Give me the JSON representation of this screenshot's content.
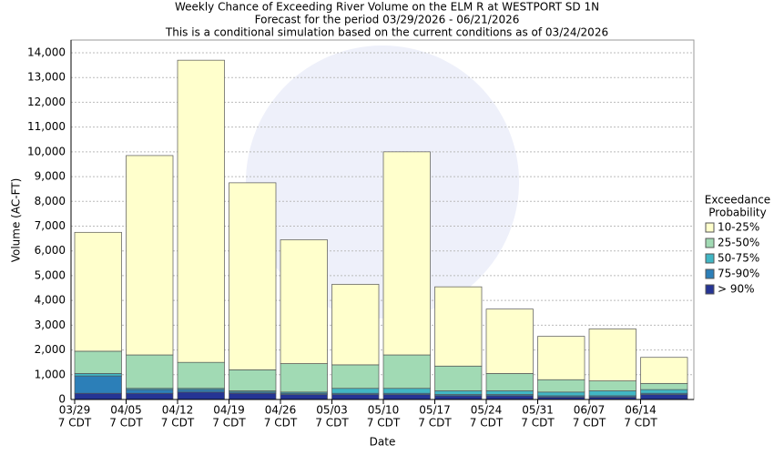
{
  "chart_data": {
    "type": "stacked_bar",
    "title": "Weekly Chance of Exceeding River Volume on the ELM R at WESTPORT SD 1N",
    "subtitle": "Forecast for the period 03/29/2026 - 06/21/2026",
    "note": "This is a conditional simulation based on the current conditions as of 03/24/2026",
    "x_label": "Date",
    "y_label": "Volume (AC-FT)",
    "categories": [
      "03/29",
      "04/05",
      "04/12",
      "04/19",
      "04/26",
      "05/03",
      "05/10",
      "05/17",
      "05/24",
      "05/31",
      "06/07",
      "06/14"
    ],
    "tick_time": "7 CDT",
    "legend_title": [
      "Exceedance",
      "Probability"
    ],
    "ylim": [
      0,
      14000
    ],
    "yticks": [
      0,
      {
        "value": 1000,
        "label": "1,000"
      },
      {
        "value": 2000,
        "label": "2,000"
      },
      {
        "value": 3000,
        "label": "3,000"
      },
      {
        "value": 4000,
        "label": "4,000"
      },
      {
        "value": 5000,
        "label": "5,000"
      },
      {
        "value": 6000,
        "label": "6,000"
      },
      {
        "value": 7000,
        "label": "7,000"
      },
      {
        "value": 8000,
        "label": "8,000"
      },
      {
        "value": 9000,
        "label": "9,000"
      },
      {
        "value": 10000,
        "label": "10,000"
      },
      {
        "value": 11000,
        "label": "11,000"
      },
      {
        "value": 12000,
        "label": "12,000"
      },
      {
        "value": 13000,
        "label": "13,000"
      },
      {
        "value": 14000,
        "label": "14,000"
      }
    ],
    "grid": true,
    "series": [
      {
        "name": "> 90%",
        "color": "#253494",
        "values": [
          250,
          250,
          300,
          250,
          200,
          200,
          200,
          150,
          150,
          100,
          100,
          200
        ]
      },
      {
        "name": "75-90%",
        "color": "#2c7fb8",
        "values": [
          700,
          150,
          100,
          50,
          50,
          50,
          50,
          50,
          50,
          50,
          50,
          50
        ]
      },
      {
        "name": "50-75%",
        "color": "#41b6c4",
        "values": [
          100,
          50,
          50,
          50,
          50,
          200,
          200,
          150,
          150,
          150,
          200,
          150
        ]
      },
      {
        "name": "25-50%",
        "color": "#a1dab4",
        "values": [
          900,
          1350,
          1050,
          850,
          1150,
          950,
          1350,
          1000,
          700,
          500,
          400,
          250
        ]
      },
      {
        "name": "10-25%",
        "color": "#ffffcc",
        "values": [
          4800,
          8050,
          12200,
          7550,
          5000,
          3250,
          8200,
          3200,
          2600,
          1750,
          2100,
          1050
        ]
      }
    ]
  }
}
